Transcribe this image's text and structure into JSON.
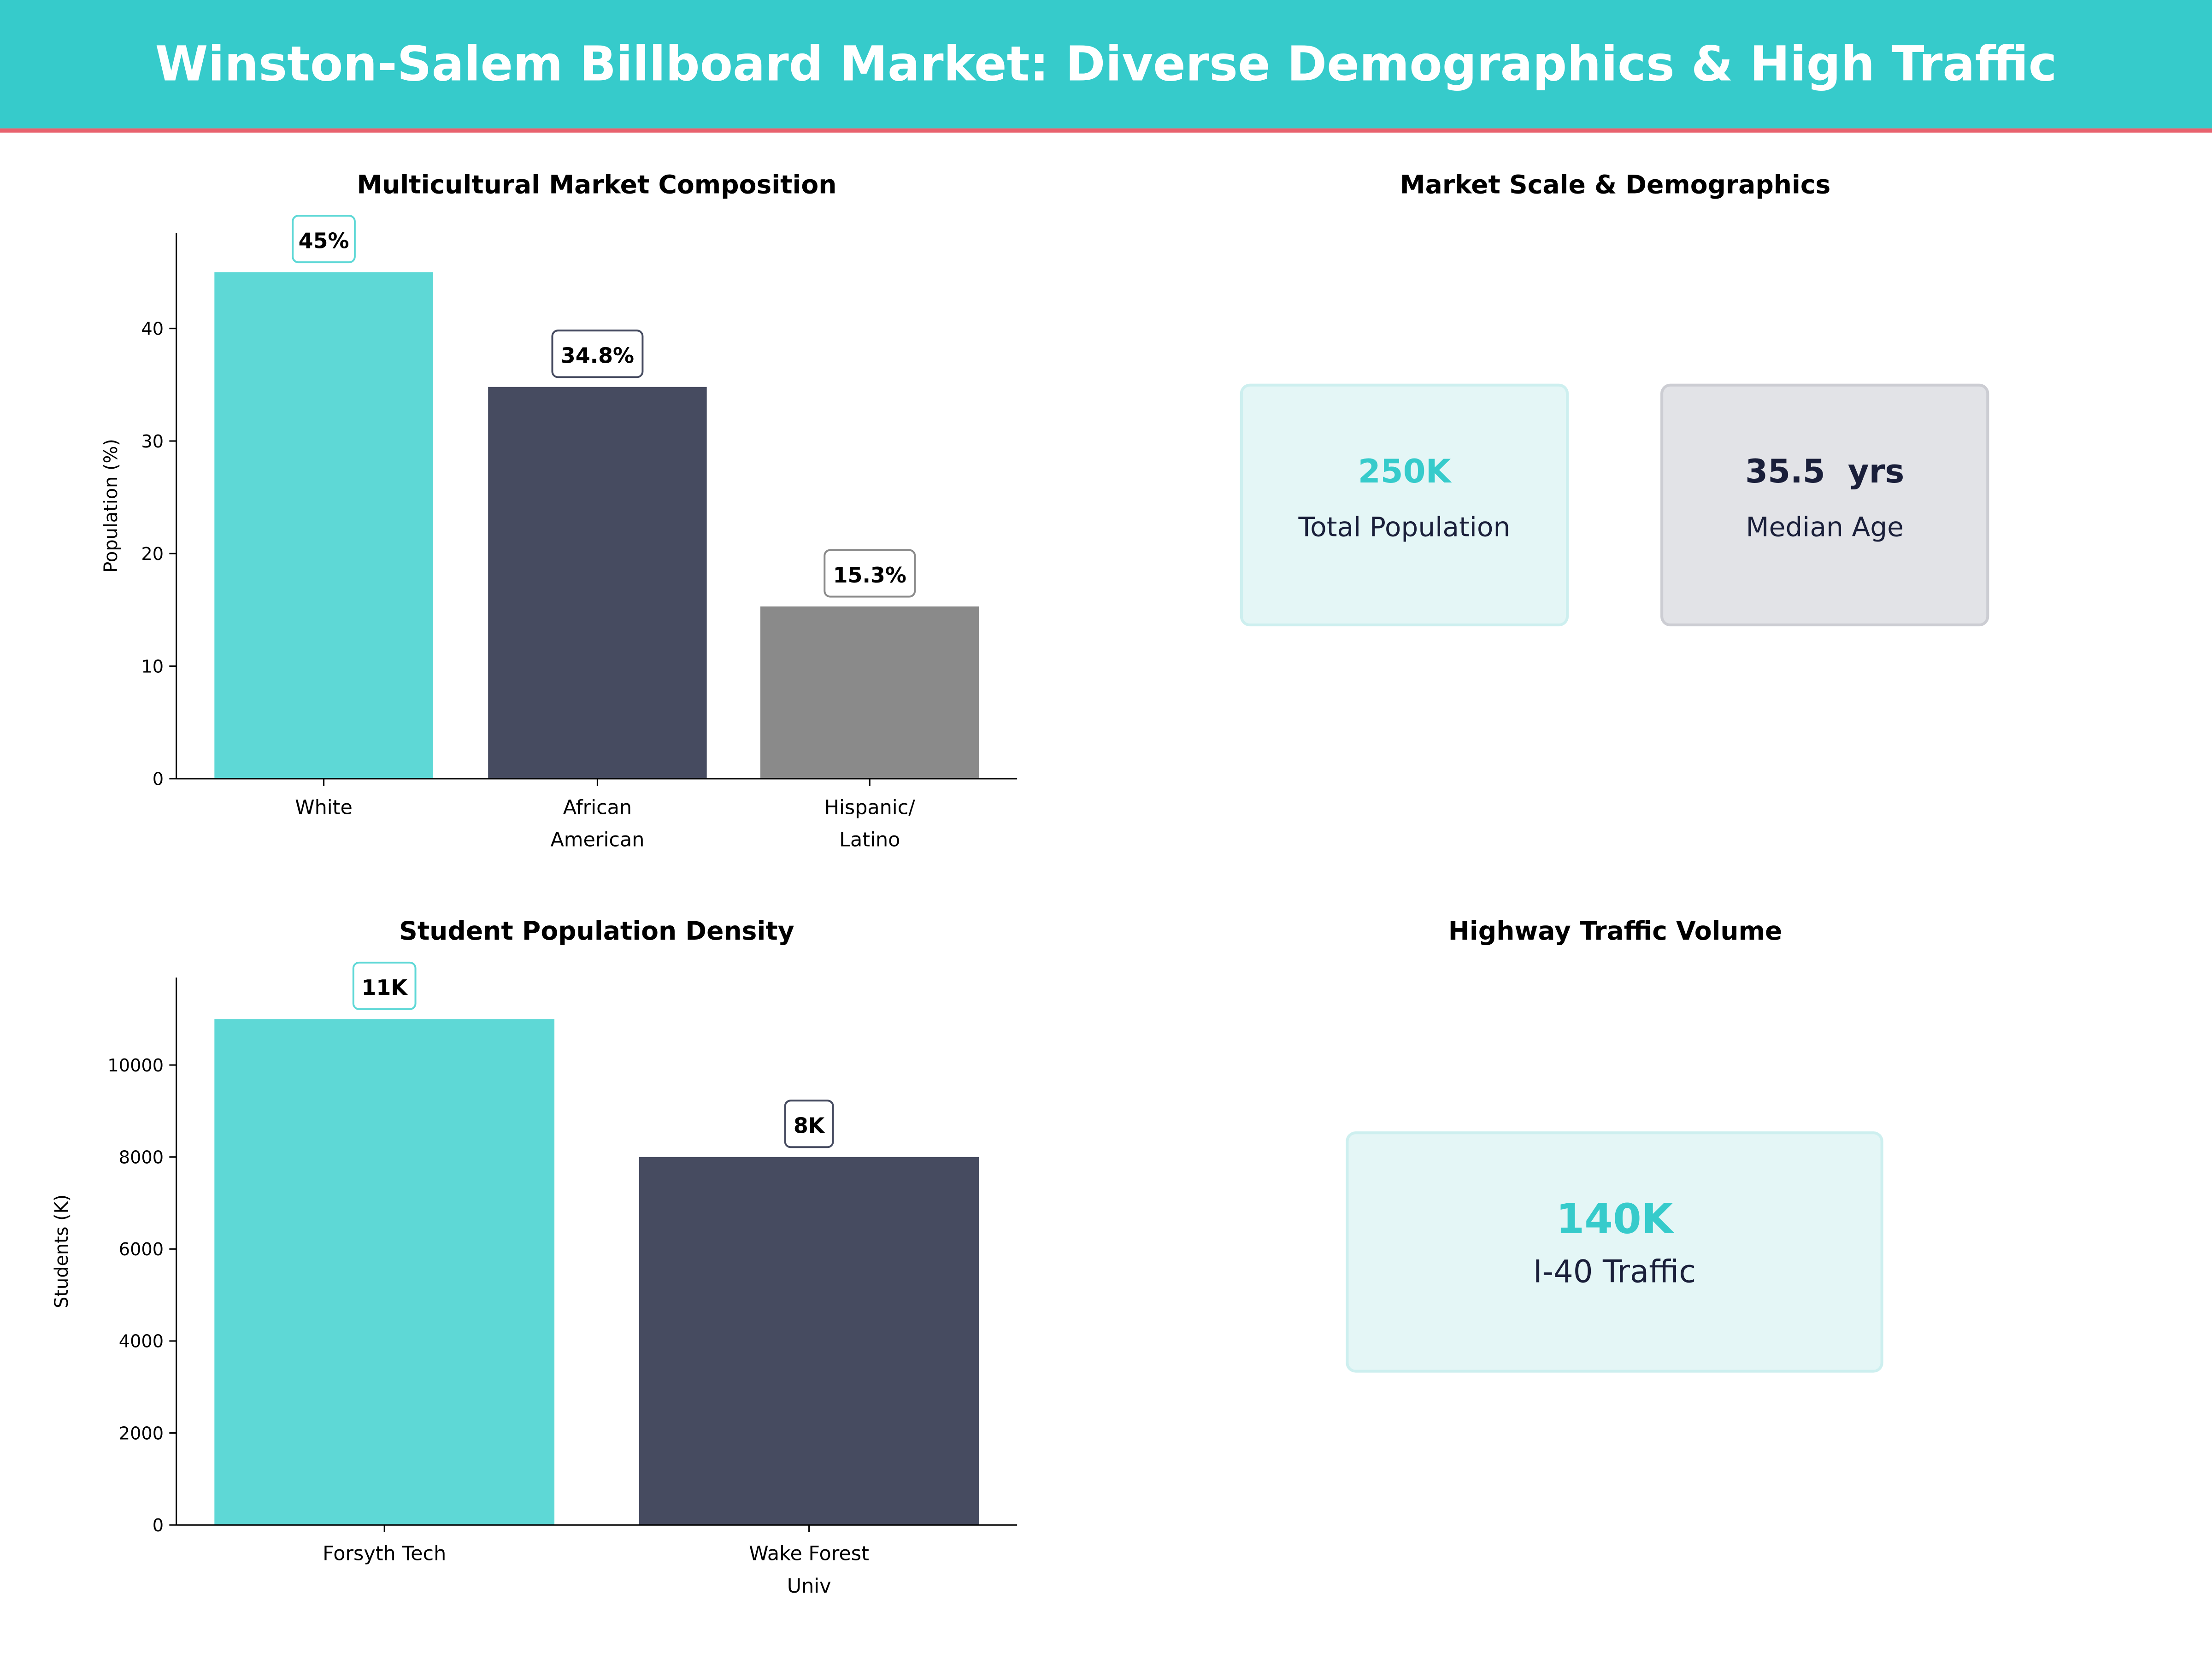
{
  "header": {
    "title": "Winston-Salem Billboard Market: Diverse Demographics & High Traffic"
  },
  "colors": {
    "header_bg": "#36CBCB",
    "header_line": "#E8626E",
    "teal": "#5ED8D6",
    "navy": "#464B60",
    "gray": "#8A8A8A",
    "card_teal_bg": "#E4F6F6",
    "card_gray_bg": "#E2E3E7",
    "dark_text": "#1A1F3A"
  },
  "chart_data": [
    {
      "type": "bar",
      "title": "Multicultural Market Composition",
      "ylabel": "Population (%)",
      "xlabel": "",
      "categories": [
        "White",
        "African\nAmerican",
        "Hispanic/\nLatino"
      ],
      "values": [
        45,
        34.8,
        15.3
      ],
      "data_labels": [
        "45%",
        "34.8%",
        "15.3%"
      ],
      "bar_colors": [
        "#5ED8D6",
        "#464B60",
        "#8A8A8A"
      ],
      "yticks": [
        0,
        10,
        20,
        30,
        40
      ],
      "ylim": [
        0,
        48.5
      ],
      "grid": false
    },
    {
      "type": "bar",
      "title": "Student Population Density",
      "ylabel": "Students (K)",
      "xlabel": "",
      "categories": [
        "Forsyth Tech",
        "Wake Forest\nUniv"
      ],
      "values": [
        11000,
        8000
      ],
      "data_labels": [
        "11K",
        "8K"
      ],
      "bar_colors": [
        "#5ED8D6",
        "#464B60"
      ],
      "yticks": [
        0,
        2000,
        4000,
        6000,
        8000,
        10000
      ],
      "ylim": [
        0,
        11900
      ],
      "grid": false
    }
  ],
  "market_scale": {
    "title": "Market Scale & Demographics",
    "cards": [
      {
        "value": "250K",
        "label": "Total Population"
      },
      {
        "value": "35.5  yrs",
        "label": "Median Age"
      }
    ]
  },
  "traffic": {
    "title": "Highway Traffic Volume",
    "card": {
      "value": "140K",
      "label": "I-40 Traffic"
    }
  }
}
